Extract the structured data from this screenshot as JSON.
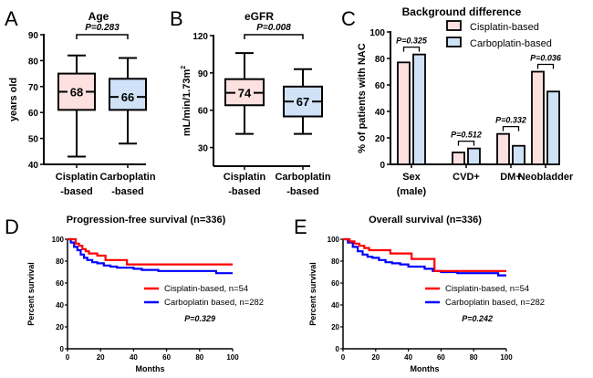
{
  "chart_data": [
    {
      "id": "A",
      "type": "box",
      "panel_label": "A",
      "title": "Age",
      "ylabel": "years old",
      "ylim": [
        40,
        90
      ],
      "yticks": [
        40,
        50,
        60,
        70,
        80,
        90
      ],
      "categories": [
        "Cisplatin\n-based",
        "Carboplatin\n-based"
      ],
      "category_lines": [
        [
          "Cisplatin",
          "-based"
        ],
        [
          "Carboplatin",
          "-based"
        ]
      ],
      "boxes": [
        {
          "name": "Cisplatin-based",
          "min": 43,
          "q1": 61,
          "median": 68,
          "q3": 75,
          "max": 82,
          "median_label": "68",
          "color": "#fde0e0"
        },
        {
          "name": "Carboplatin-based",
          "min": 48,
          "q1": 61,
          "median": 66,
          "q3": 73,
          "max": 81,
          "median_label": "66",
          "color": "#cfe2f7"
        }
      ],
      "annotation": "P=0.283"
    },
    {
      "id": "B",
      "type": "box",
      "panel_label": "B",
      "title": "eGFR",
      "ylabel": "mL/min/1.73m",
      "ylabel_sup": "2",
      "ylim": [
        15,
        120
      ],
      "yticks": [
        30,
        60,
        90,
        120
      ],
      "categories": [
        "Cisplatin\n-based",
        "Carboplatin\n-based"
      ],
      "category_lines": [
        [
          "Cisplatin",
          "-based"
        ],
        [
          "Carboplatin",
          "-based"
        ]
      ],
      "boxes": [
        {
          "name": "Cisplatin-based",
          "min": 41,
          "q1": 64,
          "median": 74,
          "q3": 85,
          "max": 106,
          "median_label": "74",
          "color": "#fde0e0"
        },
        {
          "name": "Carboplatin-based",
          "min": 41,
          "q1": 55,
          "median": 67,
          "q3": 79,
          "max": 93,
          "median_label": "67",
          "color": "#cfe2f7"
        }
      ],
      "annotation": "P=0.008"
    },
    {
      "id": "C",
      "type": "bar",
      "panel_label": "C",
      "title": "Background difference",
      "ylabel": "% of patients with NAC",
      "ylim": [
        0,
        100
      ],
      "yticks": [
        0,
        20,
        40,
        60,
        80,
        100
      ],
      "categories": [
        "Sex\n(male)",
        "CVD+",
        "DM+",
        "Neobladder"
      ],
      "category_lines": [
        [
          "Sex",
          "(male)"
        ],
        [
          "CVD+"
        ],
        [
          "DM+"
        ],
        [
          "Neobladder"
        ]
      ],
      "series": [
        {
          "name": "Cisplatin-based",
          "values": [
            77,
            9,
            23,
            70
          ],
          "color": "#fde0e0"
        },
        {
          "name": "Carboplatin-based",
          "values": [
            83,
            12,
            14,
            55
          ],
          "color": "#cfe2f7"
        }
      ],
      "annotations": [
        "P=0.325",
        "P=0.512",
        "P=0.332",
        "P=0.036"
      ],
      "legend": "top-right"
    },
    {
      "id": "D",
      "type": "line",
      "panel_label": "D",
      "title": "Progression-free survival (n=336)",
      "xlabel": "Months",
      "ylabel": "Percent survival",
      "xlim": [
        0,
        100
      ],
      "ylim": [
        0,
        100
      ],
      "xticks": [
        0,
        20,
        40,
        60,
        80,
        100
      ],
      "yticks": [
        0,
        20,
        40,
        60,
        80,
        100
      ],
      "series": [
        {
          "name": "Cisplatin-based, n=54",
          "color": "#ff0000",
          "x": [
            0,
            3,
            5,
            7,
            9,
            11,
            13,
            16,
            18,
            21,
            23,
            27,
            36,
            40,
            60,
            80,
            100
          ],
          "y": [
            100,
            100,
            96,
            94,
            91,
            89,
            87,
            87,
            85,
            85,
            81,
            81,
            77,
            77,
            77,
            77,
            77
          ]
        },
        {
          "name": "Carboplatin based, n=282",
          "color": "#0000ff",
          "x": [
            0,
            2,
            4,
            6,
            8,
            10,
            12,
            15,
            18,
            22,
            26,
            30,
            35,
            40,
            45,
            50,
            55,
            60,
            70,
            80,
            87,
            90,
            100
          ],
          "y": [
            100,
            97,
            93,
            90,
            86,
            83,
            81,
            79,
            78,
            76,
            75,
            74,
            74,
            73,
            72,
            72,
            71,
            71,
            71,
            71,
            71,
            69,
            69
          ]
        }
      ],
      "annotation": "P=0.329",
      "legend": "center-right"
    },
    {
      "id": "E",
      "type": "line",
      "panel_label": "E",
      "title": "Overall survival (n=336)",
      "xlabel": "Months",
      "ylabel": "Percent survival",
      "xlim": [
        0,
        100
      ],
      "ylim": [
        0,
        100
      ],
      "xticks": [
        0,
        20,
        40,
        60,
        80,
        100
      ],
      "yticks": [
        0,
        20,
        40,
        60,
        80,
        100
      ],
      "series": [
        {
          "name": "Cisplatin-based, n=54",
          "color": "#ff0000",
          "x": [
            0,
            4,
            7,
            10,
            13,
            16,
            29,
            42,
            56,
            60,
            80,
            100
          ],
          "y": [
            100,
            98,
            96,
            94,
            92,
            90,
            87,
            82,
            71,
            71,
            71,
            71
          ]
        },
        {
          "name": "Carboplatin based, n=282",
          "color": "#0000ff",
          "x": [
            0,
            3,
            6,
            9,
            12,
            15,
            18,
            22,
            26,
            30,
            35,
            40,
            45,
            50,
            55,
            60,
            70,
            80,
            95,
            100
          ],
          "y": [
            100,
            97,
            93,
            89,
            86,
            84,
            83,
            81,
            79,
            78,
            77,
            75,
            75,
            73,
            71,
            70,
            69,
            69,
            67,
            67
          ]
        }
      ],
      "annotation": "P=0.242",
      "legend": "center-right"
    }
  ]
}
